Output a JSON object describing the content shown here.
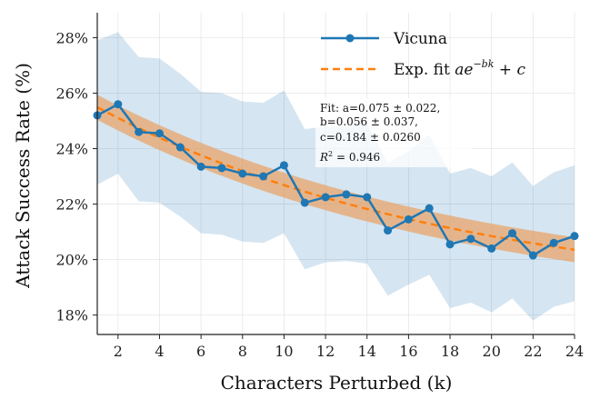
{
  "chart_data": {
    "type": "line",
    "xlabel": "Characters Perturbed (k)",
    "ylabel": "Attack Success Rate (%)",
    "xlim": [
      1,
      24
    ],
    "ylim": [
      17.3,
      28.9
    ],
    "xticks": [
      2,
      4,
      6,
      8,
      10,
      12,
      14,
      16,
      18,
      20,
      22,
      24
    ],
    "yticks": [
      18,
      20,
      22,
      24,
      26,
      28
    ],
    "ytick_suffix": "%",
    "grid": true,
    "legend_position": "top-right",
    "colors": {
      "series": "#1f77b4",
      "fit": "#ff7f0e",
      "band": "#1f77b4",
      "fit_band": "#e8a46a"
    },
    "series": [
      {
        "name": "Vicuna",
        "x": [
          1,
          2,
          3,
          4,
          5,
          6,
          7,
          8,
          9,
          10,
          11,
          12,
          13,
          14,
          15,
          16,
          17,
          18,
          19,
          20,
          21,
          22,
          23,
          24
        ],
        "values": [
          25.2,
          25.6,
          24.6,
          24.55,
          24.05,
          23.35,
          23.3,
          23.1,
          23.0,
          23.4,
          22.05,
          22.25,
          22.35,
          22.25,
          21.05,
          21.45,
          21.85,
          20.55,
          20.75,
          20.4,
          20.95,
          20.15,
          20.6,
          20.85
        ],
        "band_upper": [
          27.9,
          28.2,
          27.3,
          27.25,
          26.7,
          26.05,
          26.0,
          25.7,
          25.65,
          26.1,
          24.7,
          24.8,
          24.8,
          24.9,
          23.5,
          23.9,
          24.5,
          23.1,
          23.3,
          23.0,
          23.5,
          22.65,
          23.15,
          23.4
        ],
        "band_lower": [
          22.7,
          23.1,
          22.1,
          22.05,
          21.55,
          20.95,
          20.9,
          20.65,
          20.6,
          20.95,
          19.65,
          19.9,
          19.95,
          19.85,
          18.7,
          19.1,
          19.45,
          18.25,
          18.45,
          18.1,
          18.6,
          17.8,
          18.3,
          18.5
        ]
      }
    ],
    "fit": {
      "name": "Exp. fit ae^{-bk} + c",
      "a": 0.075,
      "b": 0.056,
      "c": 0.184,
      "band_halfwidth": 0.45
    },
    "legend": {
      "series_label": "Vicuna",
      "fit_label_prefix": "Exp. fit ",
      "fit_label_formula_base": "ae",
      "fit_label_formula_sup": "−bk",
      "fit_label_formula_tail": " + c"
    },
    "annotation": {
      "line1": "Fit: a=0.075 ± 0.022,",
      "line2": "b=0.056 ± 0.037,",
      "line3": "c=0.184 ± 0.0260",
      "line4_prefix": "R",
      "line4_sup": "2",
      "line4_tail": " = 0.946"
    }
  }
}
